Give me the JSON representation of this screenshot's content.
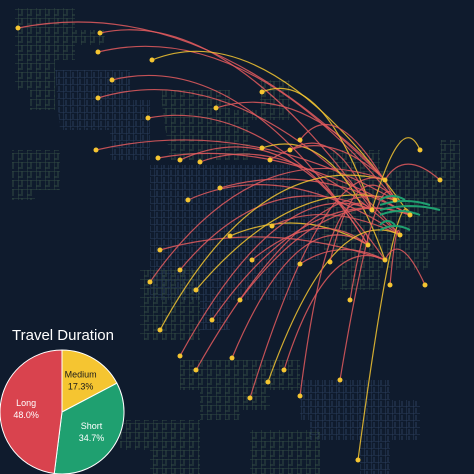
{
  "chart_data": {
    "type": "pie",
    "title": "Travel Duration",
    "categories": [
      "Long",
      "Medium",
      "Short"
    ],
    "values": [
      48.0,
      17.3,
      34.7
    ],
    "value_labels": [
      "48.0%",
      "17.3%",
      "34.7%"
    ],
    "colors": [
      "#d9434e",
      "#f5c531",
      "#1fa070"
    ]
  }
}
